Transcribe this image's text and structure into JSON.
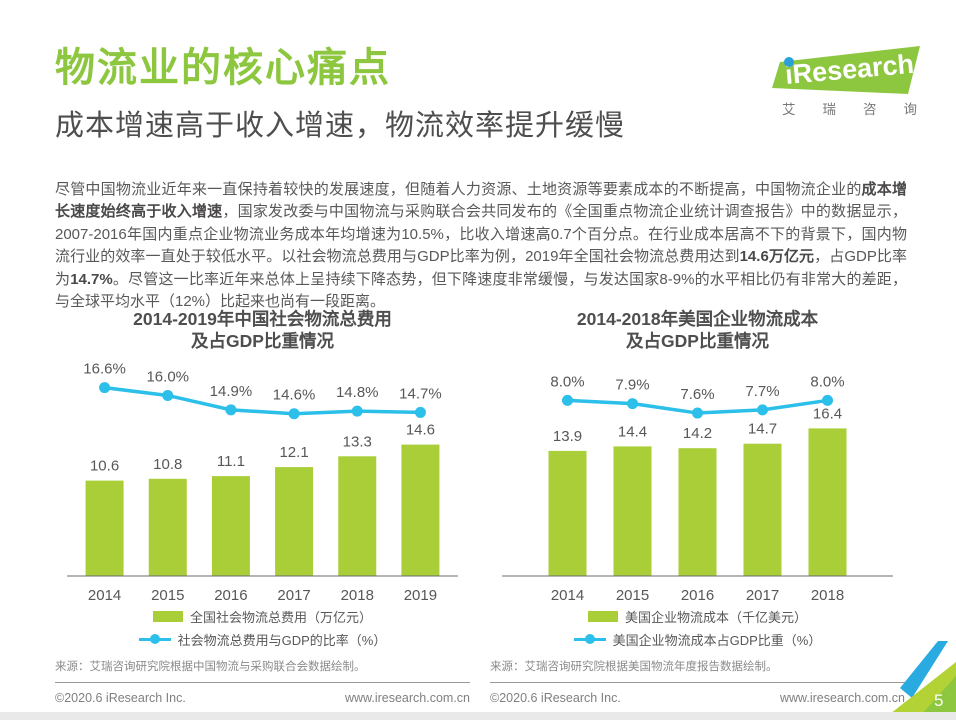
{
  "page": {
    "title": "物流业的核心痛点",
    "subtitle": "成本增速高于收入增速，物流效率提升缓慢",
    "page_number": "5"
  },
  "logo": {
    "brand": "iResearch",
    "brand_cn": "艾瑞咨询"
  },
  "paragraph": {
    "segments": [
      {
        "text": "尽管中国物流业近年来一直保持着较快的发展速度，但随着人力资源、土地资源等要素成本的不断提高，中国物流企业的",
        "bold": false
      },
      {
        "text": "成本增长速度始终高于收入增速",
        "bold": true
      },
      {
        "text": "，国家发改委与中国物流与采购联合会共同发布的《全国重点物流企业统计调查报告》中的数据显示，2007-2016年国内重点企业物流业务成本年均增速为10.5%，比收入增速高0.7个百分点。在行业成本居高不下的背景下，国内物流行业的效率一直处于较低水平。以社会物流总费用与GDP比率为例，2019年全国社会物流总费用达到",
        "bold": false
      },
      {
        "text": "14.6万亿元",
        "bold": true
      },
      {
        "text": "，占GDP比率为",
        "bold": false
      },
      {
        "text": "14.7%",
        "bold": true
      },
      {
        "text": "。尽管这一比率近年来总体上呈持续下降态势，但下降速度非常缓慢，与发达国家8-9%的水平相比仍有非常大的差距，与全球平均水平（12%）比起来也尚有一段距离。",
        "bold": false
      }
    ]
  },
  "colors": {
    "accent_green": "#8dc63f",
    "bar_green": "#a9ce38",
    "line_blue": "#2bbfe9",
    "logo_blue": "#2b9fd8",
    "corner_blue": "#29abe2",
    "corner_green_light": "#b2d235",
    "text_dark": "#595757",
    "text_muted": "#8a8a8a",
    "footer_strip_gray": "#e9e9e9"
  },
  "chart_data": [
    {
      "type": "bar",
      "title_lines": [
        "2014-2019年中国社会物流总费用",
        "及占GDP比重情况"
      ],
      "categories": [
        "2014",
        "2015",
        "2016",
        "2017",
        "2018",
        "2019"
      ],
      "series": [
        {
          "name": "全国社会物流总费用（万亿元）",
          "type": "bar",
          "values": [
            10.6,
            10.8,
            11.1,
            12.1,
            13.3,
            14.6
          ]
        },
        {
          "name": "社会物流总费用与GDP的比率（%）",
          "type": "line",
          "values": [
            16.6,
            16.0,
            14.9,
            14.6,
            14.8,
            14.7
          ],
          "labels": [
            "16.6%",
            "16.0%",
            "14.9%",
            "14.6%",
            "14.8%",
            "14.7%"
          ],
          "ylim": [
            13.2,
            17.8
          ]
        }
      ],
      "legend_position": "bottom",
      "grid": false,
      "source": "来源：艾瑞咨询研究院根据中国物流与采购联合会数据绘制。"
    },
    {
      "type": "bar",
      "title_lines": [
        "2014-2018年美国企业物流成本",
        "及占GDP比重情况"
      ],
      "categories": [
        "2014",
        "2015",
        "2016",
        "2017",
        "2018"
      ],
      "series": [
        {
          "name": "美国企业物流成本（千亿美元）",
          "type": "bar",
          "values": [
            13.9,
            14.4,
            14.2,
            14.7,
            16.4
          ]
        },
        {
          "name": "美国企业物流成本占GDP比重（%）",
          "type": "line",
          "values": [
            8.0,
            7.9,
            7.6,
            7.7,
            8.0
          ],
          "labels": [
            "8.0%",
            "7.9%",
            "7.6%",
            "7.7%",
            "8.0%"
          ],
          "ylim": [
            7.0,
            8.9
          ]
        }
      ],
      "legend_position": "bottom",
      "grid": false,
      "source": "来源：艾瑞咨询研究院根据美国物流年度报告数据绘制。"
    }
  ],
  "footer": {
    "copyright": "©2020.6 iResearch Inc.",
    "website": "www.iresearch.com.cn"
  }
}
